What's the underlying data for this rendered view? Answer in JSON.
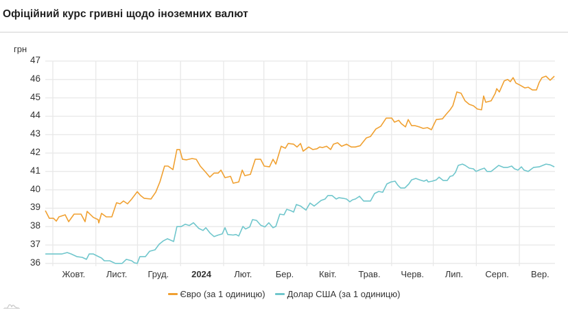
{
  "header": {
    "title": "Офіційний курс гривні щодо іноземних валют"
  },
  "chart_data": {
    "type": "line",
    "title": "Офіційний курс гривні щодо іноземних валют",
    "ylabel": "грн",
    "xlabel": "",
    "ylim": [
      36,
      47
    ],
    "yticks": [
      36,
      37,
      38,
      39,
      40,
      41,
      42,
      43,
      44,
      45,
      46,
      47
    ],
    "grid": true,
    "legend_position": "bottom",
    "x_unit": "days from 2023-10-01",
    "x_domain": [
      -5.4,
      361.5
    ],
    "month_boundaries": [
      0,
      31,
      61,
      92,
      123,
      152,
      183,
      213,
      244,
      274,
      305,
      336
    ],
    "xticks": [
      {
        "label": "Жовт.",
        "pos": 15,
        "bold": false
      },
      {
        "label": "Лист.",
        "pos": 46,
        "bold": false
      },
      {
        "label": "Груд.",
        "pos": 76,
        "bold": false
      },
      {
        "label": "2024",
        "pos": 107,
        "bold": true
      },
      {
        "label": "Лют.",
        "pos": 137,
        "bold": false
      },
      {
        "label": "Бер.",
        "pos": 167,
        "bold": false
      },
      {
        "label": "Квіт.",
        "pos": 198,
        "bold": false
      },
      {
        "label": "Трав.",
        "pos": 228,
        "bold": false
      },
      {
        "label": "Черв.",
        "pos": 259,
        "bold": false
      },
      {
        "label": "Лип.",
        "pos": 289,
        "bold": false
      },
      {
        "label": "Серп.",
        "pos": 320,
        "bold": false
      },
      {
        "label": "Вер.",
        "pos": 351,
        "bold": false
      }
    ],
    "series": [
      {
        "name": "Євро (за 1 одиницю)",
        "color": "#f0a030",
        "points": [
          [
            -5.4,
            38.87
          ],
          [
            -2.5,
            38.45
          ],
          [
            0.5,
            38.45
          ],
          [
            2.5,
            38.3
          ],
          [
            4.4,
            38.53
          ],
          [
            8.9,
            38.64
          ],
          [
            11.4,
            38.27
          ],
          [
            15.3,
            38.68
          ],
          [
            20.3,
            38.68
          ],
          [
            24.7,
            38.83
          ],
          [
            23.2,
            38.27
          ],
          [
            26.2,
            38.72
          ],
          [
            29.2,
            38.5
          ],
          [
            32.6,
            38.38
          ],
          [
            33.1,
            38.2
          ],
          [
            35.1,
            38.72
          ],
          [
            38.5,
            38.53
          ],
          [
            42.5,
            38.53
          ],
          [
            45.9,
            39.3
          ],
          [
            48.4,
            39.24
          ],
          [
            50.9,
            39.39
          ],
          [
            53.8,
            39.24
          ],
          [
            56.8,
            39.5
          ],
          [
            60.8,
            39.9
          ],
          [
            63.2,
            39.69
          ],
          [
            65.7,
            39.54
          ],
          [
            70.7,
            39.5
          ],
          [
            74.1,
            39.87
          ],
          [
            77.1,
            40.43
          ],
          [
            80.5,
            41.29
          ],
          [
            83,
            41.29
          ],
          [
            86.5,
            41.1
          ],
          [
            89.4,
            42.19
          ],
          [
            91.4,
            42.19
          ],
          [
            93.4,
            41.66
          ],
          [
            96.3,
            41.63
          ],
          [
            100.3,
            41.7
          ],
          [
            103.3,
            41.66
          ],
          [
            106.2,
            41.29
          ],
          [
            110.2,
            40.95
          ],
          [
            113.1,
            40.69
          ],
          [
            116.1,
            40.91
          ],
          [
            119.1,
            40.91
          ],
          [
            121.1,
            41.07
          ],
          [
            124,
            40.66
          ],
          [
            128,
            40.73
          ],
          [
            129.9,
            40.36
          ],
          [
            133.9,
            40.43
          ],
          [
            136.4,
            41.07
          ],
          [
            138.3,
            40.77
          ],
          [
            142.3,
            40.84
          ],
          [
            145.8,
            41.66
          ],
          [
            149.7,
            41.66
          ],
          [
            152.2,
            41.29
          ],
          [
            156.1,
            41.25
          ],
          [
            158.6,
            41.66
          ],
          [
            160.6,
            41.4
          ],
          [
            164.5,
            42.37
          ],
          [
            167.5,
            42.26
          ],
          [
            169.5,
            42.52
          ],
          [
            173.4,
            42.48
          ],
          [
            175.9,
            42.33
          ],
          [
            178.4,
            42.52
          ],
          [
            180.3,
            42.1
          ],
          [
            184.3,
            42.33
          ],
          [
            187.3,
            42.19
          ],
          [
            190.2,
            42.23
          ],
          [
            192.2,
            42.33
          ],
          [
            194.2,
            42.3
          ],
          [
            197.2,
            42.37
          ],
          [
            200.1,
            42.19
          ],
          [
            202.1,
            42.48
          ],
          [
            205.1,
            42.56
          ],
          [
            208,
            42.37
          ],
          [
            211.5,
            42.48
          ],
          [
            214.9,
            42.33
          ],
          [
            217.9,
            42.33
          ],
          [
            221.4,
            42.4
          ],
          [
            225.8,
            42.82
          ],
          [
            228.8,
            42.9
          ],
          [
            232.7,
            43.31
          ],
          [
            236.2,
            43.46
          ],
          [
            240.1,
            43.9
          ],
          [
            244.1,
            43.9
          ],
          [
            246.1,
            43.68
          ],
          [
            249.1,
            43.78
          ],
          [
            251,
            43.6
          ],
          [
            254,
            43.42
          ],
          [
            256,
            43.82
          ],
          [
            258.4,
            43.49
          ],
          [
            260.9,
            43.49
          ],
          [
            263.9,
            43.42
          ],
          [
            266.8,
            43.34
          ],
          [
            269.8,
            43.38
          ],
          [
            272.7,
            43.27
          ],
          [
            276.2,
            43.82
          ],
          [
            280.6,
            43.86
          ],
          [
            283.1,
            44.09
          ],
          [
            286.1,
            44.35
          ],
          [
            288.1,
            44.57
          ],
          [
            291,
            45.32
          ],
          [
            294,
            45.25
          ],
          [
            296.9,
            44.84
          ],
          [
            299.9,
            44.65
          ],
          [
            302.9,
            44.57
          ],
          [
            305.8,
            44.39
          ],
          [
            308.8,
            44.35
          ],
          [
            310.3,
            45.1
          ],
          [
            311.8,
            44.76
          ],
          [
            315.7,
            44.84
          ],
          [
            318.7,
            45.25
          ],
          [
            319.7,
            45.5
          ],
          [
            321.6,
            45.32
          ],
          [
            325.1,
            45.92
          ],
          [
            327.6,
            46.0
          ],
          [
            329.5,
            45.88
          ],
          [
            331.5,
            46.1
          ],
          [
            333.5,
            45.81
          ],
          [
            336.5,
            45.69
          ],
          [
            339.9,
            45.54
          ],
          [
            342.4,
            45.58
          ],
          [
            345.4,
            45.43
          ],
          [
            348.3,
            45.43
          ],
          [
            350.3,
            45.84
          ],
          [
            352.3,
            46.1
          ],
          [
            355.2,
            46.18
          ],
          [
            358.2,
            45.96
          ],
          [
            361.2,
            46.18
          ]
        ]
      },
      {
        "name": "Долар США (за 1 одиницю)",
        "color": "#6fc6cc",
        "points": [
          [
            -5.4,
            36.51
          ],
          [
            6.4,
            36.51
          ],
          [
            10.4,
            36.59
          ],
          [
            13.3,
            36.51
          ],
          [
            17.3,
            36.37
          ],
          [
            21.2,
            36.33
          ],
          [
            24.2,
            36.22
          ],
          [
            26.2,
            36.51
          ],
          [
            29.2,
            36.51
          ],
          [
            32.1,
            36.4
          ],
          [
            35.1,
            36.29
          ],
          [
            37.1,
            36.14
          ],
          [
            41,
            36.14
          ],
          [
            45,
            36.0
          ],
          [
            49.9,
            36.0
          ],
          [
            52.9,
            36.22
          ],
          [
            56.8,
            36.14
          ],
          [
            58.8,
            36.03
          ],
          [
            60.8,
            36.0
          ],
          [
            62.7,
            36.37
          ],
          [
            66.7,
            36.37
          ],
          [
            69.7,
            36.66
          ],
          [
            73.6,
            36.74
          ],
          [
            76.6,
            37.04
          ],
          [
            79.5,
            37.22
          ],
          [
            82.5,
            37.34
          ],
          [
            87,
            37.19
          ],
          [
            89.4,
            38.0
          ],
          [
            92.4,
            38.0
          ],
          [
            95.4,
            38.13
          ],
          [
            98.3,
            38.06
          ],
          [
            101.3,
            38.21
          ],
          [
            105.2,
            37.9
          ],
          [
            108.2,
            37.79
          ],
          [
            110.2,
            37.94
          ],
          [
            113.1,
            37.66
          ],
          [
            116.1,
            37.46
          ],
          [
            119.1,
            37.54
          ],
          [
            122,
            37.6
          ],
          [
            124,
            37.94
          ],
          [
            126,
            37.57
          ],
          [
            129.9,
            37.54
          ],
          [
            131.9,
            37.57
          ],
          [
            133.9,
            37.49
          ],
          [
            136.9,
            38.01
          ],
          [
            138.8,
            37.87
          ],
          [
            141.8,
            37.98
          ],
          [
            143.8,
            38.38
          ],
          [
            146.7,
            38.34
          ],
          [
            149.7,
            38.08
          ],
          [
            152.7,
            37.98
          ],
          [
            155.6,
            38.21
          ],
          [
            158.6,
            37.94
          ],
          [
            160.6,
            38.01
          ],
          [
            163.5,
            38.68
          ],
          [
            166.5,
            38.64
          ],
          [
            168.5,
            38.94
          ],
          [
            171.4,
            38.87
          ],
          [
            173.4,
            38.79
          ],
          [
            175.4,
            39.2
          ],
          [
            178.4,
            39.12
          ],
          [
            182.3,
            38.9
          ],
          [
            185.3,
            39.28
          ],
          [
            188.2,
            39.12
          ],
          [
            190.2,
            39.24
          ],
          [
            193.2,
            39.42
          ],
          [
            196.1,
            39.5
          ],
          [
            198.1,
            39.69
          ],
          [
            201.1,
            39.69
          ],
          [
            204.1,
            39.5
          ],
          [
            206,
            39.57
          ],
          [
            209,
            39.54
          ],
          [
            211.5,
            39.5
          ],
          [
            213.9,
            39.35
          ],
          [
            215.9,
            39.46
          ],
          [
            217.9,
            39.5
          ],
          [
            220.9,
            39.65
          ],
          [
            223.8,
            39.39
          ],
          [
            228.8,
            39.39
          ],
          [
            231.7,
            39.8
          ],
          [
            234.7,
            39.91
          ],
          [
            237.6,
            39.87
          ],
          [
            240.6,
            40.32
          ],
          [
            243.6,
            40.43
          ],
          [
            246.5,
            40.47
          ],
          [
            248.5,
            40.25
          ],
          [
            250.5,
            40.1
          ],
          [
            253.5,
            40.1
          ],
          [
            256.4,
            40.32
          ],
          [
            258.4,
            40.54
          ],
          [
            261.4,
            40.62
          ],
          [
            264.3,
            40.54
          ],
          [
            267.3,
            40.47
          ],
          [
            269.3,
            40.54
          ],
          [
            270.3,
            40.43
          ],
          [
            273.2,
            40.47
          ],
          [
            276.2,
            40.54
          ],
          [
            278.2,
            40.69
          ],
          [
            281.1,
            40.51
          ],
          [
            284.1,
            40.51
          ],
          [
            286.1,
            40.73
          ],
          [
            288.1,
            40.77
          ],
          [
            290,
            40.95
          ],
          [
            292,
            41.33
          ],
          [
            295,
            41.4
          ],
          [
            297,
            41.33
          ],
          [
            299.9,
            41.18
          ],
          [
            302.9,
            41.14
          ],
          [
            304.8,
            41.0
          ],
          [
            307.8,
            41.1
          ],
          [
            310.8,
            41.18
          ],
          [
            312.7,
            41.0
          ],
          [
            315.7,
            41.0
          ],
          [
            318.7,
            41.18
          ],
          [
            321.1,
            41.33
          ],
          [
            324.6,
            41.22
          ],
          [
            327.6,
            41.22
          ],
          [
            330.5,
            41.29
          ],
          [
            332.5,
            41.14
          ],
          [
            335,
            41.07
          ],
          [
            337.5,
            41.25
          ],
          [
            339.4,
            41.07
          ],
          [
            342.4,
            41.0
          ],
          [
            346.3,
            41.22
          ],
          [
            350.3,
            41.25
          ],
          [
            355.2,
            41.4
          ],
          [
            358.2,
            41.36
          ],
          [
            361.2,
            41.25
          ]
        ]
      }
    ]
  },
  "axis": {
    "y_unit": "грн",
    "y_labels": [
      "47",
      "46",
      "45",
      "44",
      "43",
      "42",
      "41",
      "40",
      "39",
      "38",
      "37",
      "36"
    ],
    "x_labels": [
      "Жовт.",
      "Лист.",
      "Груд.",
      "2024",
      "Лют.",
      "Бер.",
      "Квіт.",
      "Трав.",
      "Черв.",
      "Лип.",
      "Серп.",
      "Вер."
    ]
  },
  "legend": {
    "items": [
      {
        "label": "Євро (за 1 одиницю)",
        "color": "#f0a030"
      },
      {
        "label": "Долар США (за 1 одиницю)",
        "color": "#6fc6cc"
      }
    ]
  },
  "footer": {
    "logo_icon": "chart-logo-icon"
  }
}
